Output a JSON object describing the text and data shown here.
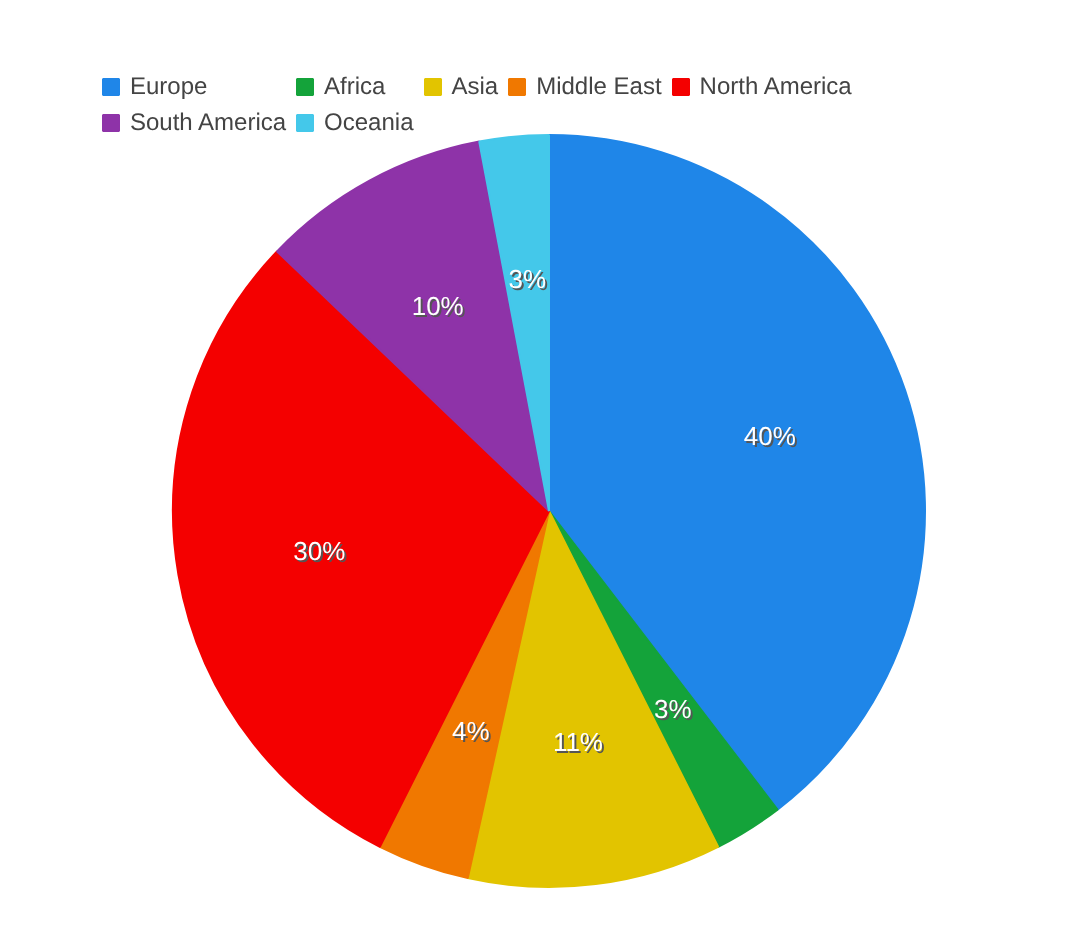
{
  "chart_data": {
    "type": "pie",
    "categories": [
      "Europe",
      "Africa",
      "Asia",
      "Middle East",
      "North America",
      "South America",
      "Oceania"
    ],
    "values": [
      40,
      3,
      11,
      4,
      30,
      10,
      3
    ],
    "value_labels": [
      "40%",
      "3%",
      "11%",
      "4%",
      "30%",
      "10%",
      "3%"
    ],
    "colors": [
      "#1f86e8",
      "#14a33a",
      "#e2c400",
      "#f07800",
      "#f40000",
      "#8e33a8",
      "#44c8ea"
    ],
    "legend": "top"
  }
}
